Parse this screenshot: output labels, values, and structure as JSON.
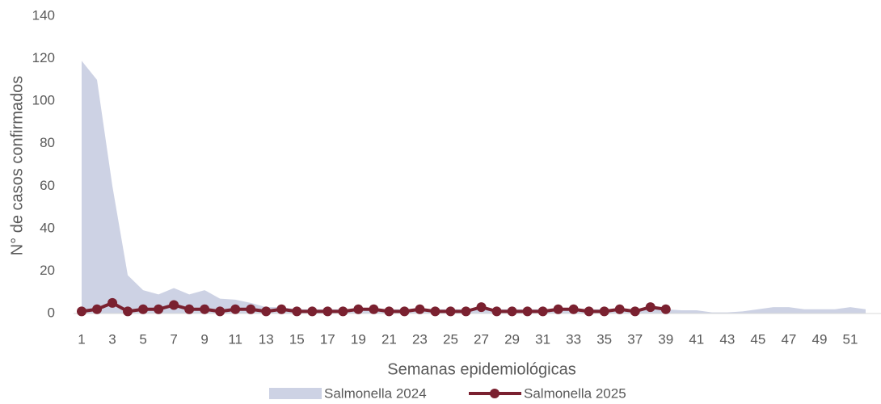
{
  "chart_data": {
    "type": "area-line",
    "x_label": "Semanas epidemiológicas",
    "y_label": "N° de casos confirmados",
    "categories": [
      "1",
      null,
      "3",
      null,
      "5",
      null,
      "7",
      null,
      "9",
      null,
      "11",
      null,
      "13",
      null,
      "15",
      null,
      "17",
      null,
      "19",
      null,
      "21",
      null,
      "23",
      null,
      "25",
      null,
      "27",
      null,
      "29",
      null,
      "31",
      null,
      "33",
      null,
      "35",
      null,
      "37",
      null,
      "39",
      null,
      "41",
      null,
      "43",
      null,
      "45",
      null,
      "47",
      null,
      "49",
      null,
      "51",
      null
    ],
    "ylim": [
      0,
      140
    ],
    "yticks": [
      0,
      20,
      40,
      60,
      80,
      100,
      120,
      140
    ],
    "legend": "bottom",
    "series": [
      {
        "name": "Salmonella 2024",
        "kind": "area",
        "color": "#cdd2e4",
        "values": [
          119,
          110,
          60,
          18,
          11,
          9,
          12,
          9,
          11,
          7,
          6.5,
          5,
          3,
          3,
          2,
          2,
          2,
          2,
          2,
          2,
          2,
          2,
          2,
          2,
          2,
          2,
          2,
          2,
          2,
          2,
          2,
          2,
          2,
          2,
          2,
          2,
          2,
          2,
          2,
          1.5,
          1.5,
          0.5,
          0.5,
          1,
          2,
          3,
          3,
          2,
          2,
          2,
          3,
          2
        ]
      },
      {
        "name": "Salmonella 2025",
        "kind": "line",
        "color": "#7a2130",
        "values": [
          1,
          2,
          5,
          1,
          2,
          2,
          4,
          2,
          2,
          1,
          2,
          2,
          1,
          2,
          1,
          1,
          1,
          1,
          2,
          2,
          1,
          1,
          2,
          1,
          1,
          1,
          3,
          1,
          1,
          1,
          1,
          2,
          2,
          1,
          1,
          2,
          1,
          3,
          2,
          null,
          null,
          null,
          null,
          null,
          null,
          null,
          null,
          null,
          null,
          null,
          null,
          null
        ]
      }
    ]
  }
}
